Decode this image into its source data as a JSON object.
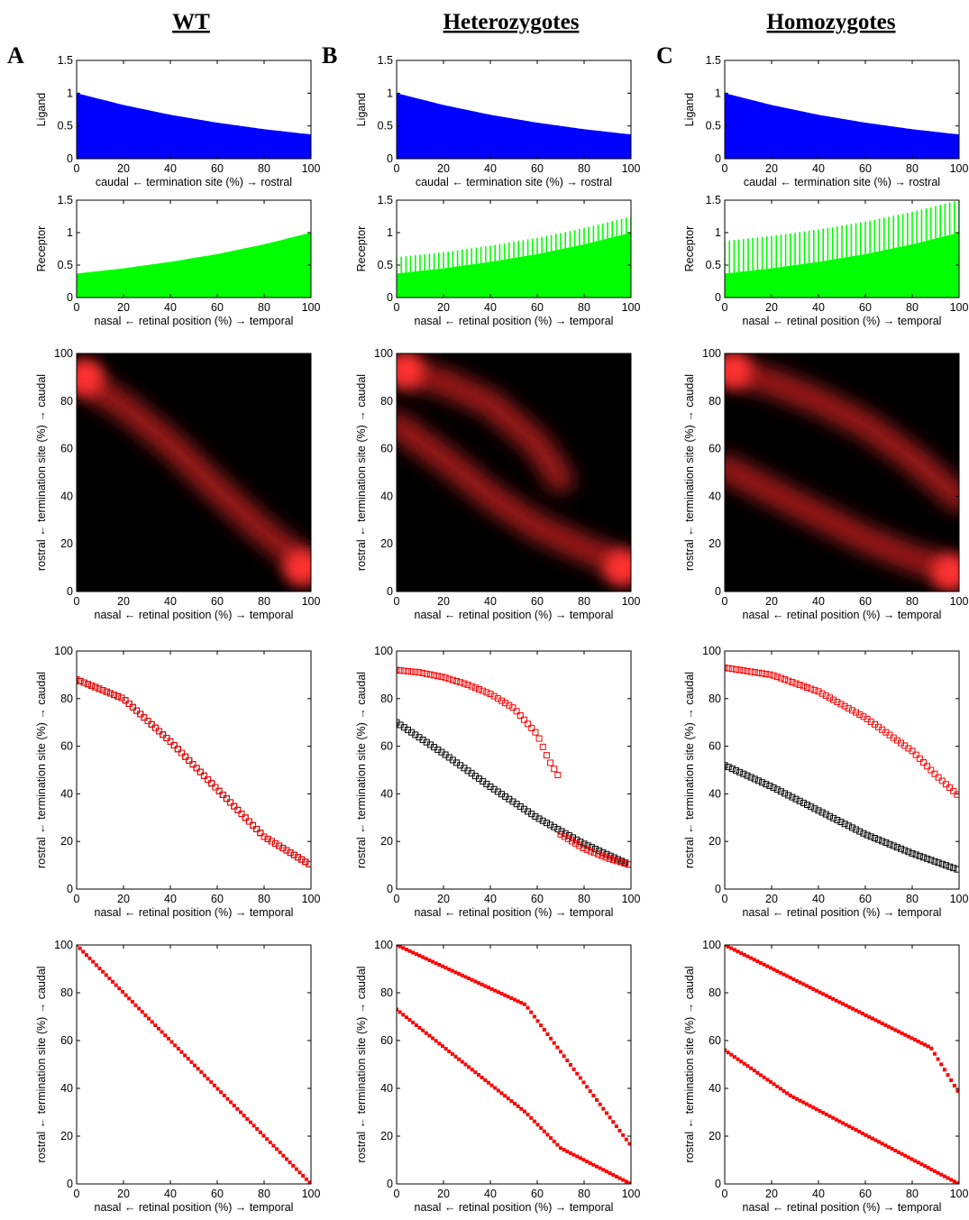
{
  "column_titles": [
    "WT",
    "Heterozygotes",
    "Homozygotes"
  ],
  "panel_letters": [
    "A",
    "B",
    "C"
  ],
  "chart_data": [
    {
      "id": "A-ligand",
      "type": "area",
      "ylabel": "Ligand",
      "xlabel": "caudal ← termination site (%) → rostral",
      "xlim": [
        0,
        100
      ],
      "ylim": [
        0,
        1.5
      ],
      "xticks": [
        0,
        20,
        40,
        60,
        80,
        100
      ],
      "yticks": [
        0,
        0.5,
        1,
        1.5
      ],
      "color": "#0000ff",
      "series": [
        {
          "x": [
            0,
            20,
            40,
            60,
            80,
            100
          ],
          "values": [
            1.0,
            0.82,
            0.67,
            0.55,
            0.45,
            0.37
          ]
        }
      ]
    },
    {
      "id": "B-ligand",
      "type": "area",
      "ylabel": "Ligand",
      "xlabel": "caudal ← termination site (%) → rostral",
      "xlim": [
        0,
        100
      ],
      "ylim": [
        0,
        1.5
      ],
      "xticks": [
        0,
        20,
        40,
        60,
        80,
        100
      ],
      "yticks": [
        0,
        0.5,
        1,
        1.5
      ],
      "color": "#0000ff",
      "series": [
        {
          "x": [
            0,
            20,
            40,
            60,
            80,
            100
          ],
          "values": [
            1.0,
            0.82,
            0.67,
            0.55,
            0.45,
            0.37
          ]
        }
      ]
    },
    {
      "id": "C-ligand",
      "type": "area",
      "ylabel": "Ligand",
      "xlabel": "caudal ← termination site (%) → rostral",
      "xlim": [
        0,
        100
      ],
      "ylim": [
        0,
        1.5
      ],
      "xticks": [
        0,
        20,
        40,
        60,
        80,
        100
      ],
      "yticks": [
        0,
        0.5,
        1,
        1.5
      ],
      "color": "#0000ff",
      "series": [
        {
          "x": [
            0,
            20,
            40,
            60,
            80,
            100
          ],
          "values": [
            1.0,
            0.82,
            0.67,
            0.55,
            0.45,
            0.37
          ]
        }
      ]
    },
    {
      "id": "A-receptor",
      "type": "area",
      "ylabel": "Receptor",
      "xlabel": "nasal ← retinal position (%) → temporal",
      "xlim": [
        0,
        100
      ],
      "ylim": [
        0,
        1.5
      ],
      "xticks": [
        0,
        20,
        40,
        60,
        80,
        100
      ],
      "yticks": [
        0,
        0.5,
        1,
        1.5
      ],
      "color": "#00ff00",
      "series": [
        {
          "x": [
            0,
            20,
            40,
            60,
            80,
            100
          ],
          "values": [
            0.37,
            0.45,
            0.55,
            0.67,
            0.82,
            1.0
          ]
        }
      ]
    },
    {
      "id": "B-receptor",
      "type": "area",
      "ylabel": "Receptor",
      "xlabel": "nasal ← retinal position (%) → temporal",
      "xlim": [
        0,
        100
      ],
      "ylim": [
        0,
        1.5
      ],
      "xticks": [
        0,
        20,
        40,
        60,
        80,
        100
      ],
      "yticks": [
        0,
        0.5,
        1,
        1.5
      ],
      "color": "#00ff00",
      "series": [
        {
          "x": [
            0,
            20,
            40,
            60,
            80,
            100
          ],
          "values": [
            0.37,
            0.45,
            0.55,
            0.67,
            0.82,
            1.0
          ]
        },
        {
          "x": [
            0,
            20,
            40,
            60,
            80,
            100
          ],
          "values": [
            0.62,
            0.7,
            0.8,
            0.92,
            1.07,
            1.25
          ]
        }
      ]
    },
    {
      "id": "C-receptor",
      "type": "area",
      "ylabel": "Receptor",
      "xlabel": "nasal ← retinal position (%) → temporal",
      "xlim": [
        0,
        100
      ],
      "ylim": [
        0,
        1.5
      ],
      "xticks": [
        0,
        20,
        40,
        60,
        80,
        100
      ],
      "yticks": [
        0,
        0.5,
        1,
        1.5
      ],
      "color": "#00ff00",
      "series": [
        {
          "x": [
            0,
            20,
            40,
            60,
            80,
            100
          ],
          "values": [
            0.37,
            0.45,
            0.55,
            0.67,
            0.82,
            1.0
          ]
        },
        {
          "x": [
            0,
            20,
            40,
            60,
            80,
            100
          ],
          "values": [
            0.87,
            0.95,
            1.05,
            1.17,
            1.32,
            1.5
          ]
        }
      ]
    },
    {
      "id": "A-heatmap",
      "type": "heatmap",
      "ylabel": "rostral ← termination site (%) → caudal",
      "xlabel": "nasal ← retinal position (%) → temporal",
      "xlim": [
        0,
        100
      ],
      "ylim": [
        0,
        100
      ],
      "xticks": [
        0,
        20,
        40,
        60,
        80,
        100
      ],
      "yticks": [
        0,
        20,
        40,
        60,
        80,
        100
      ],
      "ridges": [
        {
          "x": [
            0,
            20,
            40,
            60,
            80,
            100
          ],
          "y": [
            90,
            78,
            62,
            43,
            25,
            10
          ]
        }
      ]
    },
    {
      "id": "B-heatmap",
      "type": "heatmap",
      "ylabel": "rostral ← termination site (%) → caudal",
      "xlabel": "nasal ← retinal position (%) → temporal",
      "xlim": [
        0,
        100
      ],
      "ylim": [
        0,
        100
      ],
      "xticks": [
        0,
        20,
        40,
        60,
        80,
        100
      ],
      "yticks": [
        0,
        20,
        40,
        60,
        80,
        100
      ],
      "ridges": [
        {
          "x": [
            0,
            20,
            40,
            60,
            70
          ],
          "y": [
            93,
            88,
            79,
            62,
            47
          ]
        },
        {
          "x": [
            0,
            20,
            40,
            60,
            80,
            100
          ],
          "y": [
            70,
            56,
            40,
            27,
            18,
            10
          ]
        }
      ]
    },
    {
      "id": "C-heatmap",
      "type": "heatmap",
      "ylabel": "rostral ← termination site (%) → caudal",
      "xlabel": "nasal ← retinal position (%) → temporal",
      "xlim": [
        0,
        100
      ],
      "ylim": [
        0,
        100
      ],
      "xticks": [
        0,
        20,
        40,
        60,
        80,
        100
      ],
      "yticks": [
        0,
        20,
        40,
        60,
        80,
        100
      ],
      "ridges": [
        {
          "x": [
            0,
            20,
            40,
            60,
            80,
            100
          ],
          "y": [
            93,
            88,
            80,
            70,
            56,
            39
          ]
        },
        {
          "x": [
            0,
            20,
            40,
            60,
            80,
            100
          ],
          "y": [
            52,
            42,
            32,
            22,
            14,
            8
          ]
        }
      ]
    },
    {
      "id": "A-scatter",
      "type": "scatter",
      "ylabel": "rostral ← termination site (%) → caudal",
      "xlabel": "nasal ← retinal position (%) → temporal",
      "xlim": [
        0,
        100
      ],
      "ylim": [
        0,
        100
      ],
      "xticks": [
        0,
        20,
        40,
        60,
        80,
        100
      ],
      "yticks": [
        0,
        20,
        40,
        60,
        80,
        100
      ],
      "series": [
        {
          "color": "#000000",
          "x": [
            0,
            20,
            40,
            60,
            80,
            100
          ],
          "values": [
            88,
            80,
            62,
            42,
            22,
            10
          ]
        },
        {
          "color": "#ff0000",
          "x": [
            0,
            20,
            40,
            60,
            80,
            100
          ],
          "values": [
            88,
            80,
            62,
            42,
            22,
            10
          ]
        }
      ]
    },
    {
      "id": "B-scatter",
      "type": "scatter",
      "ylabel": "rostral ← termination site (%) → caudal",
      "xlabel": "nasal ← retinal position (%) → temporal",
      "xlim": [
        0,
        100
      ],
      "ylim": [
        0,
        100
      ],
      "xticks": [
        0,
        20,
        40,
        60,
        80,
        100
      ],
      "yticks": [
        0,
        20,
        40,
        60,
        80,
        100
      ],
      "series": [
        {
          "color": "#000000",
          "x": [
            0,
            20,
            40,
            60,
            80,
            100
          ],
          "values": [
            70,
            57,
            43,
            30,
            19,
            10
          ]
        },
        {
          "color": "#ff0000",
          "x": [
            0,
            10,
            20,
            30,
            40,
            50,
            60,
            65,
            70
          ],
          "values": [
            92,
            91,
            89,
            86,
            82,
            76,
            65,
            54,
            46
          ]
        },
        {
          "color": "#ff0000",
          "x": [
            70,
            80,
            90,
            100
          ],
          "values": [
            23,
            17,
            13,
            10
          ]
        }
      ]
    },
    {
      "id": "C-scatter",
      "type": "scatter",
      "ylabel": "rostral ← termination site (%) → caudal",
      "xlabel": "nasal ← retinal position (%) → temporal",
      "xlim": [
        0,
        100
      ],
      "ylim": [
        0,
        100
      ],
      "xticks": [
        0,
        20,
        40,
        60,
        80,
        100
      ],
      "yticks": [
        0,
        20,
        40,
        60,
        80,
        100
      ],
      "series": [
        {
          "color": "#000000",
          "x": [
            0,
            20,
            40,
            60,
            80,
            100
          ],
          "values": [
            52,
            43,
            33,
            23,
            15,
            8
          ]
        },
        {
          "color": "#ff0000",
          "x": [
            0,
            20,
            40,
            60,
            80,
            90,
            100
          ],
          "values": [
            93,
            90,
            83,
            72,
            58,
            48,
            39
          ]
        }
      ]
    },
    {
      "id": "A-line",
      "type": "scatter",
      "ylabel": "rostral ← termination site (%) → caudal",
      "xlabel": "nasal ← retinal position (%) → temporal",
      "xlim": [
        0,
        100
      ],
      "ylim": [
        0,
        100
      ],
      "xticks": [
        0,
        20,
        40,
        60,
        80,
        100
      ],
      "yticks": [
        0,
        20,
        40,
        60,
        80,
        100
      ],
      "series": [
        {
          "color": "#ff0000",
          "x": [
            0,
            100
          ],
          "values": [
            100,
            0
          ]
        }
      ]
    },
    {
      "id": "B-line",
      "type": "scatter",
      "ylabel": "rostral ← termination site (%) → caudal",
      "xlabel": "nasal ← retinal position (%) → temporal",
      "xlim": [
        0,
        100
      ],
      "ylim": [
        0,
        100
      ],
      "xticks": [
        0,
        20,
        40,
        60,
        80,
        100
      ],
      "yticks": [
        0,
        20,
        40,
        60,
        80,
        100
      ],
      "series": [
        {
          "color": "#ff0000",
          "x": [
            0,
            55,
            100
          ],
          "values": [
            100,
            75,
            16
          ]
        },
        {
          "color": "#ff0000",
          "x": [
            0,
            55,
            70,
            100
          ],
          "values": [
            73,
            30,
            15,
            0
          ]
        }
      ]
    },
    {
      "id": "C-line",
      "type": "scatter",
      "ylabel": "rostral ← termination site (%) → caudal",
      "xlabel": "nasal ← retinal position (%) → temporal",
      "xlim": [
        0,
        100
      ],
      "ylim": [
        0,
        100
      ],
      "xticks": [
        0,
        20,
        40,
        60,
        80,
        100
      ],
      "yticks": [
        0,
        20,
        40,
        60,
        80,
        100
      ],
      "series": [
        {
          "color": "#ff0000",
          "x": [
            0,
            88,
            100
          ],
          "values": [
            100,
            57,
            38
          ]
        },
        {
          "color": "#ff0000",
          "x": [
            0,
            28,
            100
          ],
          "values": [
            56,
            37,
            0
          ]
        }
      ]
    }
  ]
}
